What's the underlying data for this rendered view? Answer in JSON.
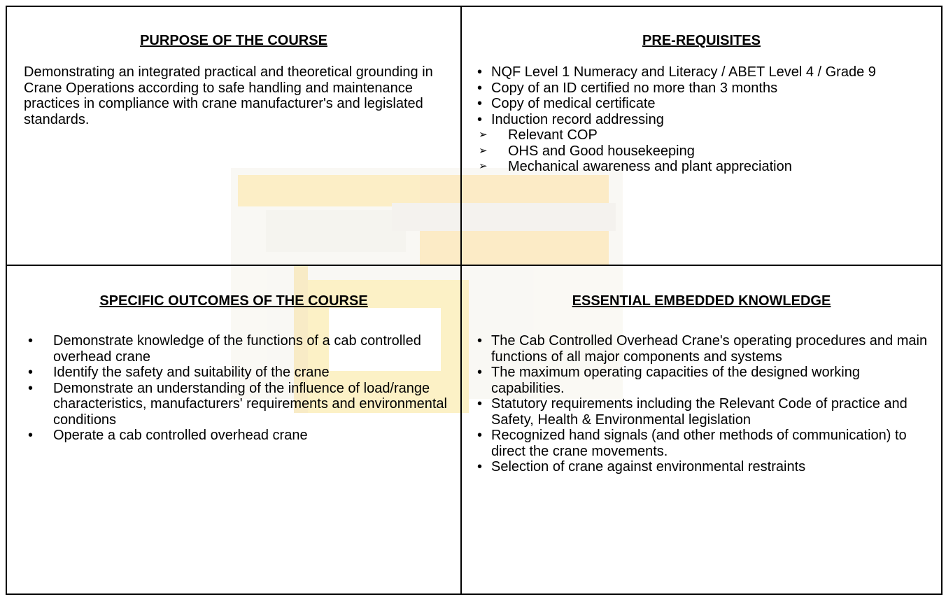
{
  "purpose": {
    "heading": "PURPOSE OF THE COURSE",
    "text": "Demonstrating an integrated practical and theoretical grounding in Crane Operations according to safe handling and maintenance practices in compliance with crane manufacturer's and legislated standards."
  },
  "prerequisites": {
    "heading": "PRE-REQUISITES",
    "items": [
      {
        "text": "NQF Level 1 Numeracy and Literacy / ABET Level 4 / Grade 9"
      },
      {
        "text": "Copy of an ID certified no more than 3 months"
      },
      {
        "text": "Copy of medical certificate"
      },
      {
        "text": "Induction record addressing",
        "subitems": [
          "Relevant COP",
          "OHS and Good housekeeping",
          "Mechanical awareness and plant appreciation"
        ]
      }
    ]
  },
  "outcomes": {
    "heading": "SPECIFIC OUTCOMES OF THE COURSE",
    "items": [
      {
        "text": "Demonstrate knowledge of the functions of a cab controlled overhead crane"
      },
      {
        "text": "Identify the safety and suitability of the crane"
      },
      {
        "text": "Demonstrate an understanding of the influence of load/range characteristics, manufacturers' requirements and environmental conditions"
      },
      {
        "text": "Operate a cab controlled overhead crane"
      }
    ]
  },
  "knowledge": {
    "heading": "ESSENTIAL EMBEDDED KNOWLEDGE",
    "items": [
      {
        "text": "The Cab Controlled Overhead Crane's operating procedures and main functions of all major components and systems"
      },
      {
        "text": "The maximum operating capacities of the designed working capabilities."
      },
      {
        "text": "Statutory requirements including the Relevant Code of practice and Safety, Health & Environmental legislation"
      },
      {
        "text": "Recognized hand signals (and other methods of communication) to direct the crane movements."
      },
      {
        "text": "Selection of crane against environmental restraints"
      }
    ]
  }
}
